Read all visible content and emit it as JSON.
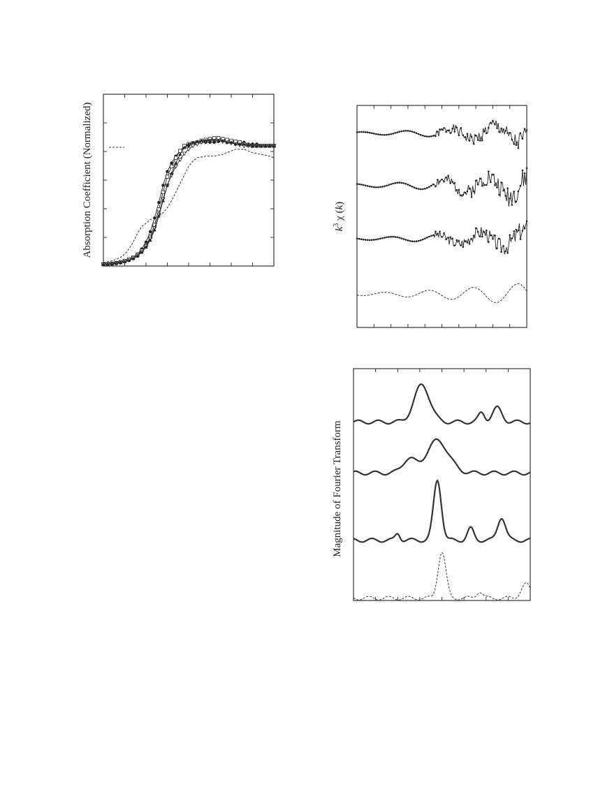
{
  "chart_data": [
    {
      "type": "line",
      "title": "",
      "xlabel": "",
      "ylabel": "Absorption Coefficient (Normalized)",
      "grid": false,
      "legend": "top-left",
      "legend_entries": [
        {
          "style": "dashed"
        }
      ],
      "x": [
        0,
        0.5,
        1,
        1.5,
        2,
        2.5,
        3,
        3.5,
        4,
        4.5,
        5,
        5.5,
        6,
        6.5,
        7,
        7.5,
        8,
        8.5,
        9,
        9.5,
        10,
        10.5,
        11,
        11.5,
        12,
        12.5,
        13,
        13.5,
        14,
        14.5,
        15,
        15.5,
        16,
        16.5,
        17,
        17.5,
        18,
        18.5,
        19,
        19.5,
        20
      ],
      "xlim": [
        0,
        20
      ],
      "ylim": [
        0,
        1.0
      ],
      "series": [
        {
          "style": "solid-filled-circle",
          "values": [
            0.01,
            0.012,
            0.015,
            0.02,
            0.025,
            0.03,
            0.04,
            0.05,
            0.07,
            0.1,
            0.14,
            0.2,
            0.28,
            0.37,
            0.47,
            0.55,
            0.6,
            0.64,
            0.67,
            0.69,
            0.7,
            0.71,
            0.715,
            0.72,
            0.72,
            0.72,
            0.72,
            0.725,
            0.73,
            0.73,
            0.73,
            0.72,
            0.72,
            0.72,
            0.71,
            0.71,
            0.71,
            0.7,
            0.7,
            0.7,
            0.7
          ]
        },
        {
          "style": "solid-open-square",
          "values": [
            0.01,
            0.011,
            0.014,
            0.018,
            0.022,
            0.03,
            0.04,
            0.05,
            0.065,
            0.09,
            0.12,
            0.17,
            0.24,
            0.33,
            0.43,
            0.52,
            0.58,
            0.63,
            0.67,
            0.7,
            0.71,
            0.715,
            0.72,
            0.73,
            0.735,
            0.74,
            0.745,
            0.745,
            0.74,
            0.735,
            0.73,
            0.725,
            0.72,
            0.71,
            0.705,
            0.7,
            0.7,
            0.7,
            0.7,
            0.7,
            0.7
          ]
        },
        {
          "style": "solid-open-triangle-down",
          "values": [
            0.01,
            0.011,
            0.013,
            0.016,
            0.02,
            0.026,
            0.034,
            0.045,
            0.06,
            0.085,
            0.115,
            0.16,
            0.22,
            0.3,
            0.39,
            0.47,
            0.53,
            0.58,
            0.62,
            0.655,
            0.68,
            0.7,
            0.71,
            0.72,
            0.725,
            0.73,
            0.73,
            0.73,
            0.725,
            0.72,
            0.715,
            0.71,
            0.705,
            0.7,
            0.7,
            0.7,
            0.7,
            0.7,
            0.7,
            0.7,
            0.7
          ]
        },
        {
          "style": "solid-filled-triangle-up",
          "values": [
            0.01,
            0.011,
            0.013,
            0.016,
            0.02,
            0.025,
            0.033,
            0.043,
            0.058,
            0.08,
            0.11,
            0.15,
            0.21,
            0.29,
            0.38,
            0.47,
            0.54,
            0.6,
            0.65,
            0.69,
            0.71,
            0.72,
            0.725,
            0.73,
            0.73,
            0.73,
            0.73,
            0.73,
            0.73,
            0.72,
            0.72,
            0.71,
            0.71,
            0.71,
            0.705,
            0.7,
            0.7,
            0.7,
            0.7,
            0.7,
            0.7
          ]
        },
        {
          "style": "dashed",
          "values": [
            0.02,
            0.025,
            0.03,
            0.04,
            0.05,
            0.07,
            0.1,
            0.14,
            0.19,
            0.23,
            0.25,
            0.27,
            0.28,
            0.29,
            0.31,
            0.34,
            0.38,
            0.43,
            0.48,
            0.53,
            0.58,
            0.61,
            0.63,
            0.635,
            0.64,
            0.64,
            0.64,
            0.645,
            0.65,
            0.66,
            0.67,
            0.68,
            0.68,
            0.68,
            0.67,
            0.66,
            0.655,
            0.65,
            0.645,
            0.64,
            0.63
          ]
        }
      ]
    },
    {
      "type": "line",
      "title": "",
      "xlabel": "",
      "ylabel_k": "k",
      "ylabel_exp": "3",
      "ylabel_rest": " χ (",
      "ylabel_k2": "k",
      "ylabel_close": ")",
      "grid": false,
      "xlim": [
        0,
        10
      ],
      "ylim": [
        -1,
        1
      ],
      "series": [
        {
          "style": "solid-dots",
          "offset": 0.75,
          "amp": 0.08,
          "seed": 1
        },
        {
          "style": "solid-dots",
          "offset": 0.28,
          "amp": 0.1,
          "seed": 2
        },
        {
          "style": "solid-dots",
          "offset": -0.2,
          "amp": 0.08,
          "seed": 3
        },
        {
          "style": "dashed",
          "offset": -0.7,
          "amp": 0.09,
          "seed": 4
        }
      ]
    },
    {
      "type": "line",
      "title": "",
      "xlabel": "",
      "ylabel": "Magnitude of Fourier Transform",
      "grid": false,
      "xlim": [
        0,
        8
      ],
      "ylim": [
        0,
        1
      ],
      "series": [
        {
          "style": "solid-bold",
          "offset": 0.77,
          "peaks": [
            [
              3.1,
              0.16,
              0.5
            ],
            [
              6.5,
              0.06,
              0.3
            ],
            [
              5.8,
              0.04,
              0.2
            ]
          ]
        },
        {
          "style": "solid-bold",
          "offset": 0.55,
          "peaks": [
            [
              3.8,
              0.14,
              0.7
            ],
            [
              2.5,
              0.06,
              0.4
            ]
          ]
        },
        {
          "style": "solid-bold",
          "offset": 0.26,
          "peaks": [
            [
              3.8,
              0.26,
              0.25
            ],
            [
              5.3,
              0.05,
              0.2
            ],
            [
              6.7,
              0.1,
              0.25
            ],
            [
              2.0,
              0.03,
              0.15
            ]
          ]
        },
        {
          "style": "dashed",
          "offset": 0.01,
          "peaks": [
            [
              4.0,
              0.2,
              0.25
            ],
            [
              7.8,
              0.06,
              0.3
            ],
            [
              5.7,
              0.03,
              0.2
            ]
          ]
        }
      ]
    }
  ]
}
